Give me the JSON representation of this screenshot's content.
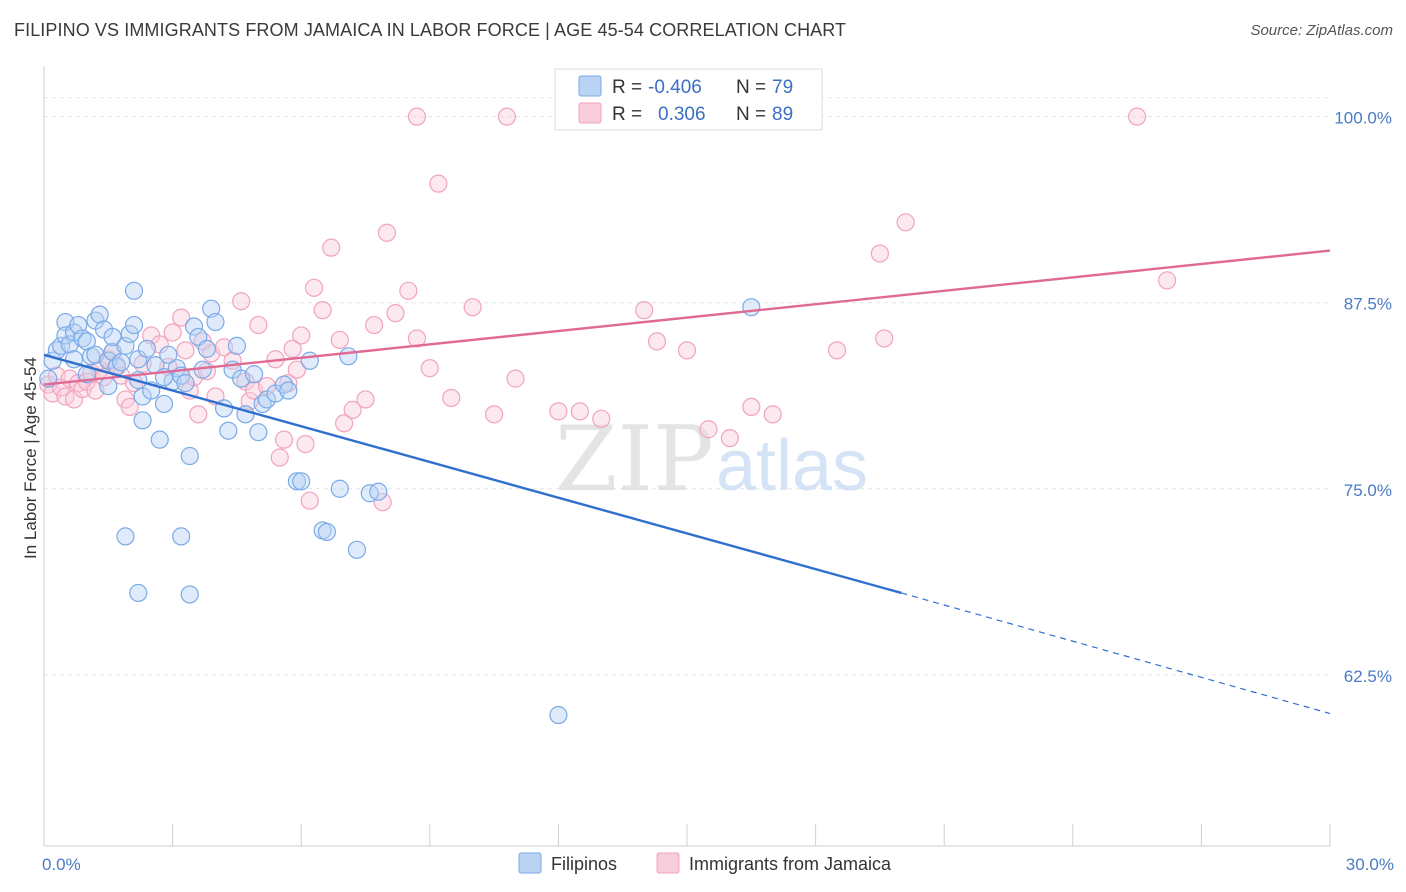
{
  "header": {
    "title": "FILIPINO VS IMMIGRANTS FROM JAMAICA IN LABOR FORCE | AGE 45-54 CORRELATION CHART",
    "source": "Source: ZipAtlas.com"
  },
  "watermark": {
    "zip": "ZIP",
    "atlas": "atlas"
  },
  "colors": {
    "filipinos": "#7aaae8",
    "filipinos_line": "#2f6fce",
    "jamaica": "#f2a3bd",
    "jamaica_line": "#e06a93",
    "axis_text": "#4a7bc4"
  },
  "legend": {
    "r_label": "R =",
    "n_label": "N =",
    "rows": [
      {
        "series": "filipinos",
        "r": "-0.406",
        "n": "79"
      },
      {
        "series": "jamaica",
        "r": "0.306",
        "n": "89"
      }
    ]
  },
  "bottom_legend": [
    {
      "series": "filipinos",
      "label": "Filipinos"
    },
    {
      "series": "jamaica",
      "label": "Immigrants from Jamaica"
    }
  ],
  "chart_data": {
    "type": "scatter",
    "xlabel": "",
    "ylabel": "In Labor Force | Age 45-54",
    "xlim": [
      0,
      30
    ],
    "ylim": [
      51,
      103
    ],
    "x_tick_labels": [
      {
        "value": 0,
        "label": "0.0%"
      },
      {
        "value": 30,
        "label": "30.0%"
      }
    ],
    "y_tick_labels": [
      {
        "value": 100,
        "label": "100.0%"
      },
      {
        "value": 87.5,
        "label": "87.5%"
      },
      {
        "value": 75,
        "label": "75.0%"
      },
      {
        "value": 62.5,
        "label": "62.5%"
      }
    ],
    "x_minor_ticks": [
      0,
      3,
      6,
      9,
      12,
      15,
      18,
      21,
      24,
      27,
      30
    ],
    "grid": true,
    "series": [
      {
        "name": "Filipinos",
        "key": "filipinos",
        "trend": {
          "x0": 0,
          "y0": 84.0,
          "x1": 20,
          "y1": 68.0,
          "dash_to": 30,
          "dash_y": 59.9
        },
        "points": [
          [
            0.1,
            82.4
          ],
          [
            0.2,
            83.6
          ],
          [
            0.3,
            84.3
          ],
          [
            0.4,
            84.6
          ],
          [
            0.5,
            86.2
          ],
          [
            0.5,
            85.3
          ],
          [
            0.6,
            84.7
          ],
          [
            0.7,
            83.7
          ],
          [
            0.7,
            85.5
          ],
          [
            0.8,
            86.0
          ],
          [
            0.9,
            85.1
          ],
          [
            1.0,
            84.9
          ],
          [
            1.1,
            83.9
          ],
          [
            1.2,
            84.0
          ],
          [
            1.2,
            86.3
          ],
          [
            1.3,
            86.7
          ],
          [
            1.4,
            85.7
          ],
          [
            1.5,
            83.6
          ],
          [
            1.6,
            84.2
          ],
          [
            1.6,
            85.2
          ],
          [
            1.7,
            83.2
          ],
          [
            1.8,
            83.5
          ],
          [
            1.9,
            84.6
          ],
          [
            2.0,
            85.4
          ],
          [
            2.1,
            86.0
          ],
          [
            2.2,
            83.7
          ],
          [
            2.2,
            82.3
          ],
          [
            2.3,
            81.2
          ],
          [
            2.3,
            79.6
          ],
          [
            2.4,
            84.4
          ],
          [
            2.5,
            81.6
          ],
          [
            2.6,
            83.3
          ],
          [
            2.7,
            78.3
          ],
          [
            2.8,
            80.7
          ],
          [
            2.9,
            84.0
          ],
          [
            3.0,
            82.2
          ],
          [
            3.1,
            83.1
          ],
          [
            3.2,
            82.6
          ],
          [
            3.3,
            82.1
          ],
          [
            3.4,
            77.2
          ],
          [
            3.5,
            85.9
          ],
          [
            3.6,
            85.2
          ],
          [
            3.7,
            83.0
          ],
          [
            3.8,
            84.4
          ],
          [
            3.9,
            87.1
          ],
          [
            4.0,
            86.2
          ],
          [
            4.2,
            80.4
          ],
          [
            4.3,
            78.9
          ],
          [
            4.4,
            83.0
          ],
          [
            4.5,
            84.6
          ],
          [
            4.6,
            82.4
          ],
          [
            4.7,
            80.0
          ],
          [
            4.9,
            82.7
          ],
          [
            5.0,
            78.8
          ],
          [
            5.1,
            80.7
          ],
          [
            5.2,
            81.0
          ],
          [
            5.4,
            81.4
          ],
          [
            5.6,
            82.0
          ],
          [
            5.7,
            81.6
          ],
          [
            5.9,
            75.5
          ],
          [
            6.0,
            75.5
          ],
          [
            6.2,
            83.6
          ],
          [
            6.5,
            72.2
          ],
          [
            6.6,
            72.1
          ],
          [
            6.9,
            75.0
          ],
          [
            7.1,
            83.9
          ],
          [
            7.3,
            70.9
          ],
          [
            7.6,
            74.7
          ],
          [
            7.8,
            74.8
          ],
          [
            1.9,
            71.8
          ],
          [
            2.2,
            68.0
          ],
          [
            3.2,
            71.8
          ],
          [
            3.4,
            67.9
          ],
          [
            2.1,
            88.3
          ],
          [
            12.0,
            59.8
          ],
          [
            16.5,
            87.2
          ],
          [
            1.0,
            82.7
          ],
          [
            1.5,
            81.9
          ],
          [
            2.8,
            82.5
          ]
        ]
      },
      {
        "name": "Immigrants from Jamaica",
        "key": "jamaica",
        "trend": {
          "x0": 0,
          "y0": 82.0,
          "x1": 30,
          "y1": 91.0
        },
        "points": [
          [
            0.1,
            82.0
          ],
          [
            0.2,
            81.4
          ],
          [
            0.3,
            82.6
          ],
          [
            0.4,
            81.8
          ],
          [
            0.5,
            81.2
          ],
          [
            0.6,
            82.4
          ],
          [
            0.7,
            81.0
          ],
          [
            0.8,
            82.1
          ],
          [
            0.9,
            81.7
          ],
          [
            1.0,
            82.2
          ],
          [
            1.1,
            82.8
          ],
          [
            1.2,
            81.6
          ],
          [
            1.3,
            83.0
          ],
          [
            1.4,
            82.5
          ],
          [
            1.5,
            83.7
          ],
          [
            1.6,
            84.2
          ],
          [
            1.7,
            83.3
          ],
          [
            1.8,
            82.6
          ],
          [
            1.9,
            81.0
          ],
          [
            2.0,
            80.5
          ],
          [
            2.1,
            82.1
          ],
          [
            2.3,
            83.4
          ],
          [
            2.5,
            85.3
          ],
          [
            2.7,
            84.7
          ],
          [
            2.9,
            83.2
          ],
          [
            3.0,
            85.5
          ],
          [
            3.2,
            86.5
          ],
          [
            3.3,
            84.3
          ],
          [
            3.4,
            81.6
          ],
          [
            3.5,
            82.5
          ],
          [
            3.6,
            80.0
          ],
          [
            3.7,
            84.9
          ],
          [
            3.8,
            82.9
          ],
          [
            3.9,
            84.1
          ],
          [
            4.0,
            81.2
          ],
          [
            4.2,
            84.5
          ],
          [
            4.4,
            83.6
          ],
          [
            4.6,
            87.6
          ],
          [
            4.7,
            82.2
          ],
          [
            4.8,
            80.9
          ],
          [
            4.9,
            81.6
          ],
          [
            5.0,
            86.0
          ],
          [
            5.2,
            81.9
          ],
          [
            5.4,
            83.7
          ],
          [
            5.5,
            77.1
          ],
          [
            5.6,
            78.3
          ],
          [
            5.7,
            82.1
          ],
          [
            5.8,
            84.4
          ],
          [
            5.9,
            83.0
          ],
          [
            6.0,
            85.3
          ],
          [
            6.1,
            78.0
          ],
          [
            6.2,
            74.2
          ],
          [
            6.3,
            88.5
          ],
          [
            6.5,
            87.0
          ],
          [
            6.7,
            91.2
          ],
          [
            6.9,
            85.0
          ],
          [
            7.0,
            79.4
          ],
          [
            7.2,
            80.3
          ],
          [
            7.5,
            81.0
          ],
          [
            7.7,
            86.0
          ],
          [
            7.9,
            74.1
          ],
          [
            8.0,
            92.2
          ],
          [
            8.2,
            86.8
          ],
          [
            8.5,
            88.3
          ],
          [
            8.7,
            85.1
          ],
          [
            9.0,
            83.1
          ],
          [
            9.2,
            95.5
          ],
          [
            9.5,
            81.1
          ],
          [
            10.0,
            87.2
          ],
          [
            10.5,
            80.0
          ],
          [
            11.0,
            82.4
          ],
          [
            12.0,
            80.2
          ],
          [
            12.5,
            80.2
          ],
          [
            13.0,
            79.7
          ],
          [
            14.0,
            87.0
          ],
          [
            14.3,
            84.9
          ],
          [
            15.0,
            84.3
          ],
          [
            15.5,
            79.0
          ],
          [
            16.0,
            78.4
          ],
          [
            16.5,
            80.5
          ],
          [
            17.0,
            80.0
          ],
          [
            18.5,
            84.3
          ],
          [
            19.5,
            90.8
          ],
          [
            19.6,
            85.1
          ],
          [
            20.1,
            92.9
          ],
          [
            26.2,
            89.0
          ],
          [
            8.7,
            100.0
          ],
          [
            10.8,
            100.0
          ],
          [
            25.5,
            100.0
          ]
        ]
      }
    ]
  }
}
